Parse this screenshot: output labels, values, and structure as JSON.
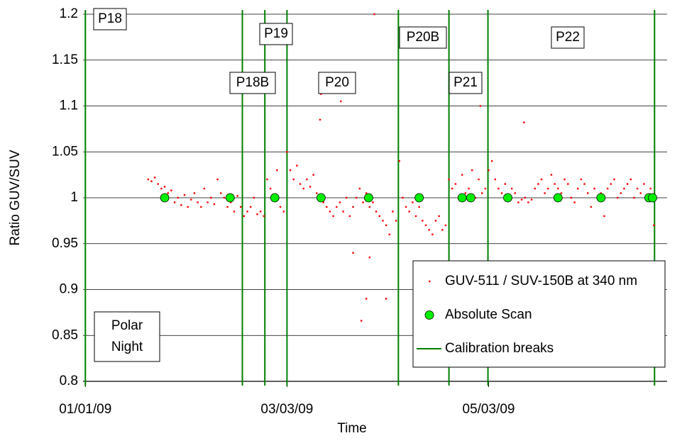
{
  "chart_data": {
    "type": "scatter",
    "x_label": "Time",
    "y_label": "Ratio GUV/SUV",
    "xlim": [
      -5,
      176
    ],
    "ylim": [
      0.8,
      1.2
    ],
    "xticks": [
      {
        "value": 0,
        "label": "01/01/09"
      },
      {
        "value": 61,
        "label": "03/03/09"
      },
      {
        "value": 122,
        "label": "05/03/09"
      }
    ],
    "yticks": [
      0.8,
      0.85,
      0.9,
      0.95,
      1,
      1.05,
      1.1,
      1.15,
      1.2
    ],
    "grid": true,
    "legend": "lower right",
    "annotations": [
      "P18",
      "P18B",
      "P19",
      "P20",
      "P20B",
      "P21",
      "P22",
      "Polar Night"
    ],
    "series": [
      {
        "name": "GUV-511 / SUV-150B at 340 nm",
        "color": "#ff0000",
        "marker": "square",
        "x": [
          19,
          20,
          21,
          22,
          23,
          24,
          25,
          26,
          27,
          28,
          29,
          30,
          31,
          32,
          33,
          34,
          35,
          36,
          37,
          38,
          39,
          40,
          41,
          42,
          43,
          44,
          45,
          46,
          47,
          48,
          49,
          50,
          51,
          52,
          53,
          54,
          55,
          56,
          57,
          58,
          59,
          60,
          61,
          62,
          63,
          64,
          65,
          66,
          67,
          68,
          69,
          70,
          71,
          72,
          73,
          74,
          75,
          76,
          77,
          78,
          79,
          80,
          81,
          82,
          83,
          84,
          85,
          86,
          87,
          88,
          89,
          90,
          91,
          92,
          93,
          94,
          95,
          96,
          97,
          98,
          99,
          100,
          101,
          102,
          103,
          104,
          105,
          106,
          107,
          108,
          109,
          110,
          111,
          112,
          113,
          114,
          115,
          116,
          117,
          118,
          119,
          120,
          121,
          122,
          123,
          124,
          125,
          126,
          127,
          128,
          129,
          130,
          131,
          132,
          133,
          134,
          135,
          136,
          137,
          138,
          139,
          140,
          141,
          142,
          143,
          144,
          145,
          146,
          147,
          148,
          149,
          150,
          151,
          152,
          153,
          154,
          155,
          156,
          157,
          158,
          159,
          160,
          161,
          162,
          163,
          164,
          165,
          166,
          167,
          168,
          169,
          170,
          171,
          172,
          87.4,
          83.5,
          85,
          91,
          71.3,
          77.3,
          119,
          119.5,
          132.7,
          71,
          81,
          86
        ],
        "values": [
          1.02,
          1.018,
          1.022,
          1.015,
          1.01,
          1.012,
          1.005,
          1.008,
          0.995,
          1.0,
          0.992,
          1.003,
          0.99,
          0.998,
          1.005,
          0.995,
          0.99,
          1.01,
          0.995,
          1.0,
          0.993,
          1.02,
          1.005,
          1.0,
          0.99,
          0.995,
          0.985,
          1.002,
          0.99,
          0.98,
          0.985,
          0.99,
          1.0,
          0.982,
          0.985,
          0.98,
          1.02,
          1.01,
          1.0,
          1.03,
          0.99,
          0.985,
          1.05,
          1.03,
          1.02,
          1.035,
          1.015,
          1.01,
          1.02,
          1.012,
          1.025,
          1.005,
          1.0,
          0.995,
          0.99,
          0.985,
          0.98,
          0.99,
          0.995,
          0.985,
          1.0,
          0.98,
          0.99,
          1.0,
          1.01,
          0.995,
          1.005,
          0.99,
          0.995,
          0.985,
          0.98,
          0.975,
          0.97,
          0.96,
          0.985,
          0.975,
          1.04,
          1.0,
          0.99,
          0.985,
          0.995,
          0.98,
          0.99,
          0.975,
          0.97,
          0.965,
          0.96,
          0.975,
          0.98,
          0.965,
          0.97,
          1.02,
          1.01,
          1.015,
          1.0,
          1.025,
          1.005,
          1.01,
          1.03,
          1.0,
          1.02,
          1.005,
          1.01,
          1.03,
          1.04,
          1.02,
          1.01,
          1.005,
          1.015,
          1.0,
          1.01,
          1.005,
          0.995,
          0.998,
          1.0,
          0.995,
          0.998,
          1.01,
          1.015,
          1.02,
          1.005,
          1.01,
          1.025,
          1.015,
          1.01,
          1.005,
          1.02,
          1.015,
          1.0,
          0.995,
          1.01,
          1.02,
          1.015,
          1.005,
          0.99,
          1.01,
          1.0,
          1.005,
          0.98,
          1.01,
          1.015,
          1.02,
          1.0,
          1.005,
          1.01,
          1.015,
          1.02,
          1.0,
          1.01,
          1.005,
          1.015,
          1.0,
          1.01,
          0.97,
          1.2,
          0.866,
          0.89,
          0.89,
          1.113,
          1.105,
          1.12,
          1.1,
          1.082,
          1.085,
          0.94,
          0.935
        ]
      },
      {
        "name": "Absolute Scan",
        "color": "#00ee00",
        "marker": "circle",
        "x": [
          24,
          43.8,
          57.3,
          71.3,
          85.7,
          101,
          114,
          116.6,
          127.8,
          143,
          156,
          170.5,
          171.6
        ],
        "values": [
          1,
          1,
          1,
          1,
          1,
          1,
          1,
          1,
          1,
          1,
          1,
          1,
          1
        ]
      },
      {
        "name": "Calibration breaks",
        "color": "#008000",
        "marker": "vline",
        "x": [
          0,
          47.5,
          54.3,
          61,
          94.7,
          110,
          121.8,
          172.2
        ]
      }
    ]
  }
}
